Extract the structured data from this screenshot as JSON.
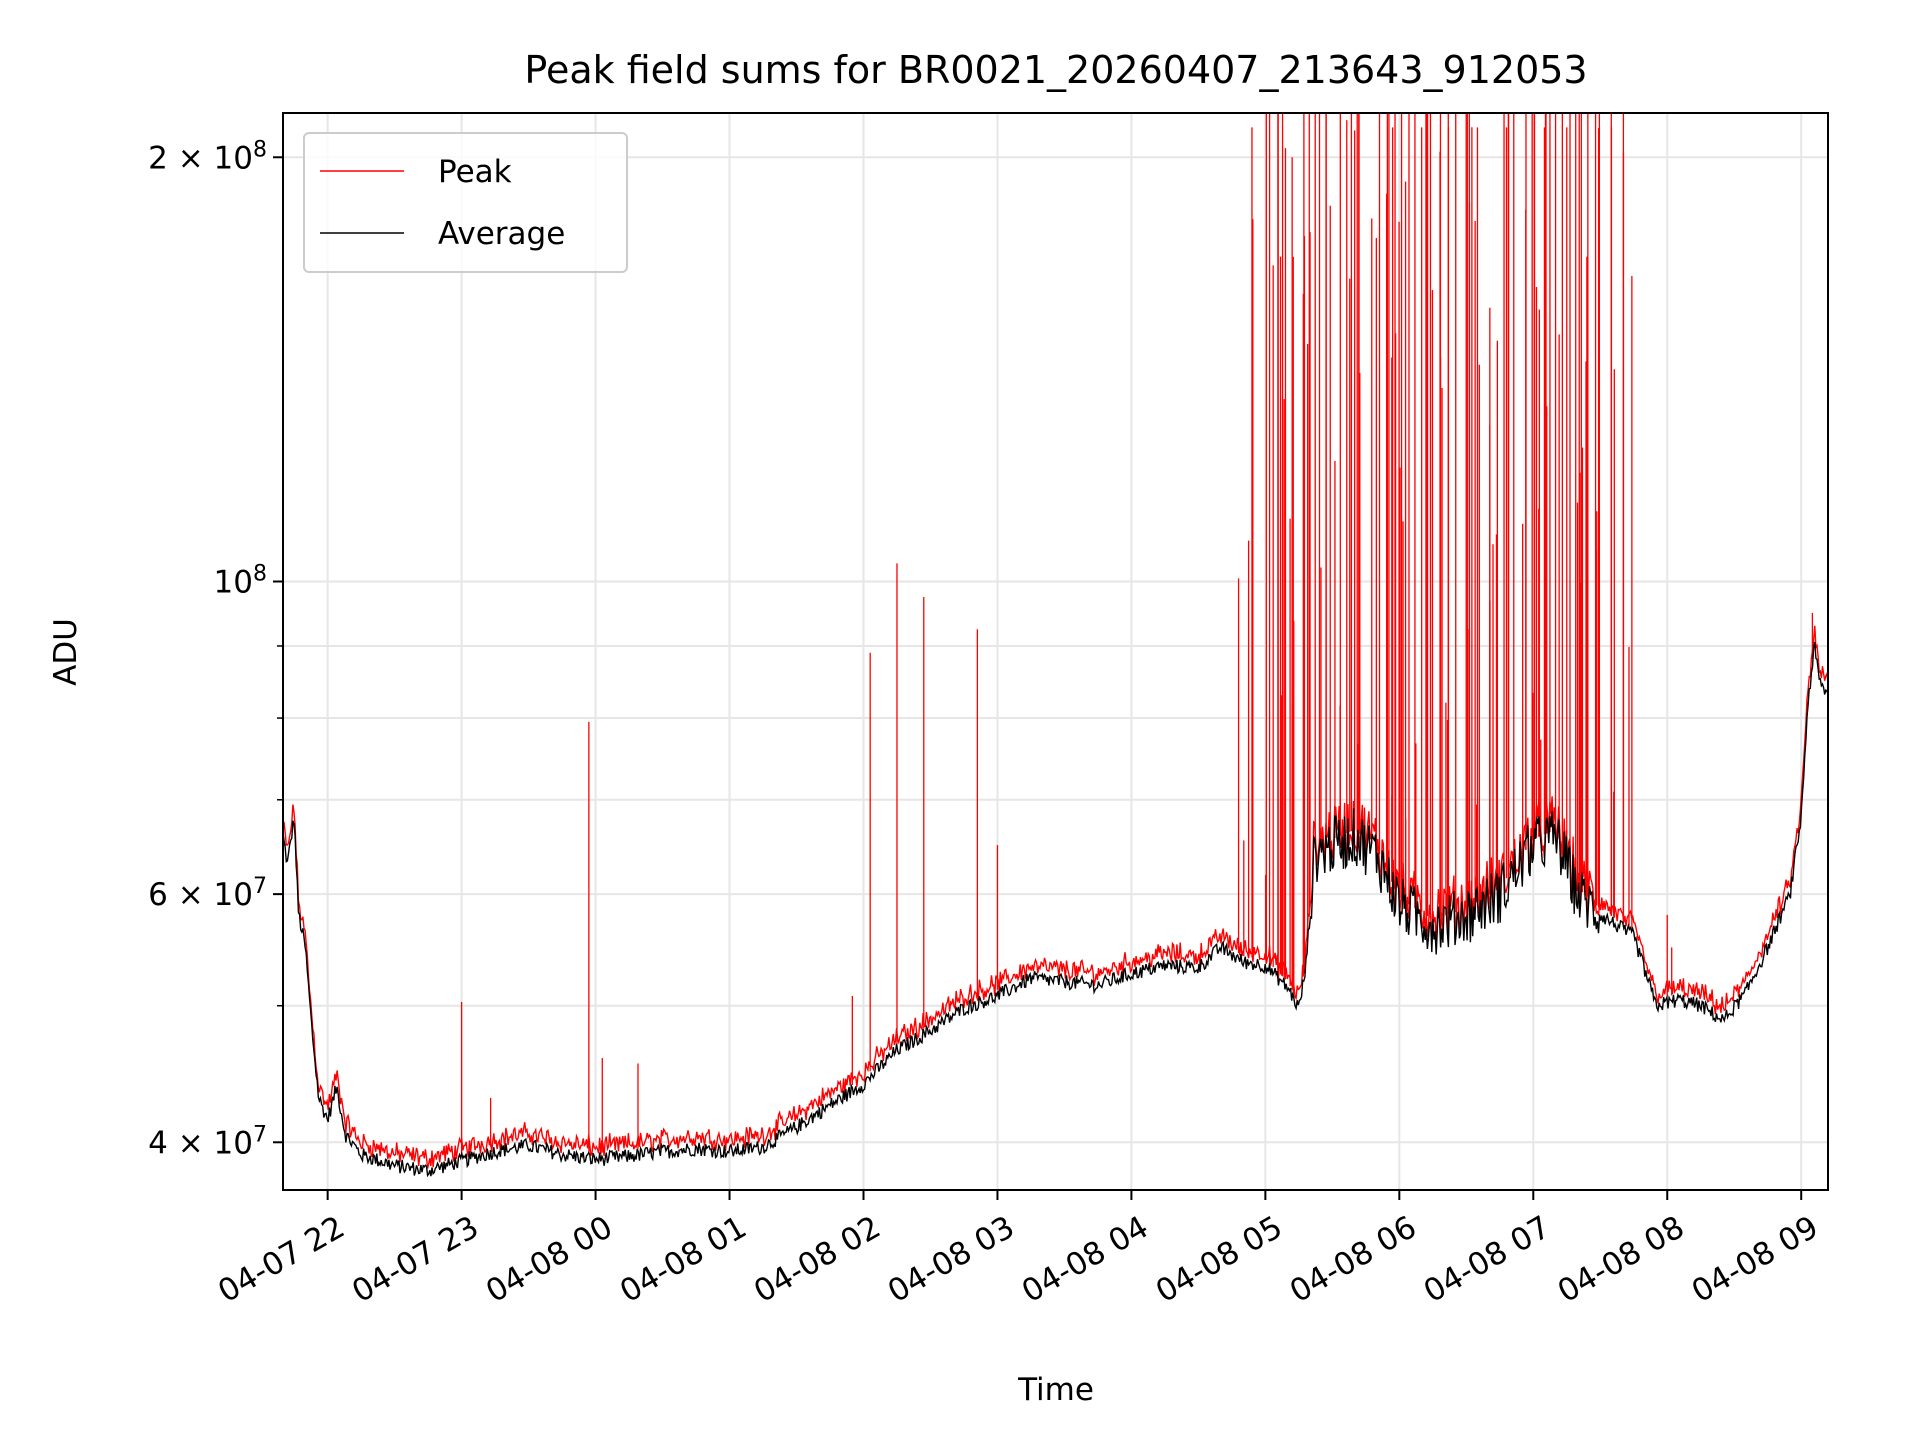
{
  "chart_data": {
    "type": "line",
    "title": "Peak field sums for BR0021_20260407_213643_912053",
    "xlabel": "Time",
    "ylabel": "ADU",
    "y_scale": "log",
    "ylim": [
      37000000,
      215000000
    ],
    "xlim": [
      "2026-04-07 21:40",
      "2026-04-08 09:12"
    ],
    "grid": true,
    "legend_position": "top-left",
    "x_ticks": [
      {
        "t": "2026-04-07 22:00",
        "label": "04-07 22"
      },
      {
        "t": "2026-04-07 23:00",
        "label": "04-07 23"
      },
      {
        "t": "2026-04-08 00:00",
        "label": "04-08 00"
      },
      {
        "t": "2026-04-08 01:00",
        "label": "04-08 01"
      },
      {
        "t": "2026-04-08 02:00",
        "label": "04-08 02"
      },
      {
        "t": "2026-04-08 03:00",
        "label": "04-08 03"
      },
      {
        "t": "2026-04-08 04:00",
        "label": "04-08 04"
      },
      {
        "t": "2026-04-08 05:00",
        "label": "04-08 05"
      },
      {
        "t": "2026-04-08 06:00",
        "label": "04-08 06"
      },
      {
        "t": "2026-04-08 07:00",
        "label": "04-08 07"
      },
      {
        "t": "2026-04-08 08:00",
        "label": "04-08 08"
      },
      {
        "t": "2026-04-08 09:00",
        "label": "04-08 09"
      }
    ],
    "y_major_ticks": [
      {
        "value": 40000000,
        "mant": "4",
        "times": "×",
        "base": "10",
        "exp": "7"
      },
      {
        "value": 60000000,
        "mant": "6",
        "times": "×",
        "base": "10",
        "exp": "7"
      },
      {
        "value": 100000000,
        "mant": "",
        "times": "",
        "base": "10",
        "exp": "8"
      },
      {
        "value": 200000000,
        "mant": "2",
        "times": "×",
        "base": "10",
        "exp": "8"
      }
    ],
    "y_minor_ticks": [
      50000000,
      70000000,
      80000000,
      90000000
    ],
    "series": [
      {
        "name": "Average",
        "color": "#000000",
        "points": [
          [
            "2026-04-07 21:40",
            66000000
          ],
          [
            "2026-04-07 21:42",
            63000000
          ],
          [
            "2026-04-07 21:45",
            68000000
          ],
          [
            "2026-04-07 21:47",
            58000000
          ],
          [
            "2026-04-07 21:50",
            55000000
          ],
          [
            "2026-04-07 21:53",
            48000000
          ],
          [
            "2026-04-07 21:56",
            43000000
          ],
          [
            "2026-04-07 22:00",
            41500000
          ],
          [
            "2026-04-07 22:04",
            43800000
          ],
          [
            "2026-04-07 22:08",
            40500000
          ],
          [
            "2026-04-07 22:15",
            39200000
          ],
          [
            "2026-04-07 22:30",
            38500000
          ],
          [
            "2026-04-07 22:45",
            38200000
          ],
          [
            "2026-04-07 23:00",
            38800000
          ],
          [
            "2026-04-07 23:15",
            39400000
          ],
          [
            "2026-04-07 23:30",
            39800000
          ],
          [
            "2026-04-07 23:45",
            39200000
          ],
          [
            "2026-04-08 00:00",
            38900000
          ],
          [
            "2026-04-08 00:15",
            39100000
          ],
          [
            "2026-04-08 00:30",
            39400000
          ],
          [
            "2026-04-08 00:45",
            39600000
          ],
          [
            "2026-04-08 01:00",
            39400000
          ],
          [
            "2026-04-08 01:15",
            39700000
          ],
          [
            "2026-04-08 01:30",
            41000000
          ],
          [
            "2026-04-08 01:45",
            42500000
          ],
          [
            "2026-04-08 02:00",
            44000000
          ],
          [
            "2026-04-08 02:15",
            46500000
          ],
          [
            "2026-04-08 02:30",
            48000000
          ],
          [
            "2026-04-08 02:45",
            49800000
          ],
          [
            "2026-04-08 03:00",
            50800000
          ],
          [
            "2026-04-08 03:15",
            52300000
          ],
          [
            "2026-04-08 03:30",
            52000000
          ],
          [
            "2026-04-08 03:45",
            51700000
          ],
          [
            "2026-04-08 04:00",
            52700000
          ],
          [
            "2026-04-08 04:15",
            53400000
          ],
          [
            "2026-04-08 04:30",
            53200000
          ],
          [
            "2026-04-08 04:40",
            55000000
          ],
          [
            "2026-04-08 04:50",
            53700000
          ],
          [
            "2026-04-08 05:00",
            53400000
          ],
          [
            "2026-04-08 05:10",
            51500000
          ],
          [
            "2026-04-08 05:15",
            49800000
          ],
          [
            "2026-04-08 05:18",
            53000000
          ],
          [
            "2026-04-08 05:22",
            64000000
          ],
          [
            "2026-04-08 05:30",
            65000000
          ],
          [
            "2026-04-08 05:40",
            66000000
          ],
          [
            "2026-04-08 05:50",
            64000000
          ],
          [
            "2026-04-08 06:00",
            59000000
          ],
          [
            "2026-04-08 06:15",
            57000000
          ],
          [
            "2026-04-08 06:30",
            58000000
          ],
          [
            "2026-04-08 06:45",
            60000000
          ],
          [
            "2026-04-08 07:00",
            65000000
          ],
          [
            "2026-04-08 07:10",
            66000000
          ],
          [
            "2026-04-08 07:20",
            60000000
          ],
          [
            "2026-04-08 07:30",
            58000000
          ],
          [
            "2026-04-08 07:45",
            56000000
          ],
          [
            "2026-04-08 07:55",
            50000000
          ],
          [
            "2026-04-08 08:05",
            50500000
          ],
          [
            "2026-04-08 08:15",
            50000000
          ],
          [
            "2026-04-08 08:25",
            48800000
          ],
          [
            "2026-04-08 08:35",
            51000000
          ],
          [
            "2026-04-08 08:45",
            55000000
          ],
          [
            "2026-04-08 08:55",
            60000000
          ],
          [
            "2026-04-08 09:00",
            68000000
          ],
          [
            "2026-04-08 09:03",
            82000000
          ],
          [
            "2026-04-08 09:06",
            90000000
          ],
          [
            "2026-04-08 09:08",
            85000000
          ],
          [
            "2026-04-08 09:12",
            83000000
          ]
        ],
        "noise_fraction": 0.012
      },
      {
        "name": "Peak",
        "color": "#ff0000",
        "spike_count": 130,
        "spikes": [
          [
            "2026-04-07 23:00",
            50300000
          ],
          [
            "2026-04-07 23:13",
            43000000
          ],
          [
            "2026-04-07 23:57",
            79500000
          ],
          [
            "2026-04-08 00:03",
            45900000
          ],
          [
            "2026-04-08 00:19",
            45500000
          ],
          [
            "2026-04-08 01:55",
            50800000
          ],
          [
            "2026-04-08 02:03",
            89000000
          ],
          [
            "2026-04-08 02:15",
            103000000
          ],
          [
            "2026-04-08 02:27",
            97500000
          ],
          [
            "2026-04-08 02:51",
            92500000
          ],
          [
            "2026-04-08 03:00",
            65000000
          ],
          [
            "2026-04-08 04:48",
            100500000
          ],
          [
            "2026-04-08 04:54",
            210000000
          ],
          [
            "2026-04-08 05:09",
            203000000
          ],
          [
            "2026-04-08 05:12",
            200000000
          ],
          [
            "2026-04-08 05:17",
            160000000
          ],
          [
            "2026-04-08 05:20",
            177000000
          ],
          [
            "2026-04-08 05:40",
            209000000
          ],
          [
            "2026-04-08 05:57",
            210000000
          ],
          [
            "2026-04-08 06:10",
            210000000
          ],
          [
            "2026-04-08 06:22",
            210000000
          ],
          [
            "2026-04-08 06:35",
            210000000
          ],
          [
            "2026-04-08 06:48",
            210000000
          ],
          [
            "2026-04-08 07:05",
            210000000
          ],
          [
            "2026-04-08 07:15",
            210000000
          ],
          [
            "2026-04-08 07:24",
            170000000
          ],
          [
            "2026-04-08 07:35",
            210000000
          ],
          [
            "2026-04-08 08:00",
            58000000
          ],
          [
            "2026-04-08 08:02",
            55000000
          ],
          [
            "2026-04-08 09:05",
            95000000
          ]
        ]
      }
    ]
  },
  "legend": {
    "items": [
      {
        "label": "Peak",
        "color": "#ff0000"
      },
      {
        "label": "Average",
        "color": "#000000"
      }
    ]
  }
}
